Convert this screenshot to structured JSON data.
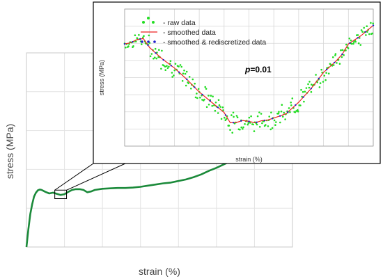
{
  "chart_data": [
    {
      "type": "line",
      "xlabel": "strain (%)",
      "ylabel": "stress (MPa)",
      "xlim": [
        0,
        70
      ],
      "ylim": [
        0,
        5
      ],
      "xticks": [
        "0",
        "10",
        "20",
        "30",
        "40",
        "50",
        "60",
        "70"
      ],
      "yticks": [
        "0",
        "1",
        "2",
        "3",
        "4",
        "5"
      ],
      "grid": true,
      "series": [
        {
          "color": "#1b8a3a",
          "x": [
            0,
            0.5,
            1,
            1.5,
            2,
            2.5,
            3,
            3.5,
            4,
            5,
            6,
            7,
            8,
            9,
            10,
            11,
            12,
            13,
            14,
            15,
            16,
            17,
            18,
            20,
            22,
            24,
            26,
            28,
            30,
            32,
            34,
            36,
            38,
            40,
            42,
            44,
            46,
            48,
            50,
            52,
            54,
            56,
            58
          ],
          "y": [
            0,
            0.45,
            0.85,
            1.1,
            1.3,
            1.4,
            1.46,
            1.48,
            1.47,
            1.42,
            1.38,
            1.4,
            1.37,
            1.34,
            1.36,
            1.42,
            1.47,
            1.49,
            1.49,
            1.47,
            1.41,
            1.43,
            1.47,
            1.5,
            1.51,
            1.52,
            1.52,
            1.53,
            1.55,
            1.58,
            1.61,
            1.64,
            1.66,
            1.7,
            1.74,
            1.8,
            1.87,
            1.96,
            2.04,
            2.13,
            2.22,
            2.3,
            2.38
          ]
        }
      ],
      "zoom_box": {
        "x": [
          8,
          10
        ],
        "y": [
          1.335,
          1.375
        ]
      }
    },
    {
      "type": "scatter",
      "xlabel": "strain (%)",
      "ylabel": "stress (MPa)",
      "xlim": [
        8,
        10
      ],
      "ylim": [
        1.335,
        1.375
      ],
      "xticks": [
        "8",
        "8.2",
        "8.4",
        "8.6",
        "8.8",
        "9",
        "9.2",
        "9.4",
        "9.6",
        "9.8",
        "10"
      ],
      "yticks": [
        "1.335",
        "1.34",
        "1.345",
        "1.35",
        "1.355",
        "1.36",
        "1.365",
        "1.37",
        "1.375"
      ],
      "grid": true,
      "legend_position": "top-left",
      "annotation": {
        "prefix": "p",
        "suffix": "=0.01"
      },
      "series": [
        {
          "name": "- raw data",
          "style": "scatter",
          "color": "#22dd22",
          "n_points": 260,
          "noise_amplitude": 0.0035
        },
        {
          "name": "- smoothed data",
          "style": "line",
          "color": "#ee2222",
          "x": [
            8.0,
            8.05,
            8.1,
            8.15,
            8.2,
            8.3,
            8.4,
            8.5,
            8.6,
            8.7,
            8.8,
            8.85,
            8.9,
            8.95,
            9.0,
            9.05,
            9.1,
            9.15,
            9.2,
            9.25,
            9.3,
            9.4,
            9.5,
            9.6,
            9.7,
            9.75,
            9.8,
            9.9,
            10.0
          ],
          "y": [
            1.3648,
            1.3652,
            1.3661,
            1.3664,
            1.3638,
            1.3605,
            1.3578,
            1.3545,
            1.3508,
            1.3478,
            1.3448,
            1.3418,
            1.3419,
            1.3425,
            1.3422,
            1.3418,
            1.3424,
            1.3426,
            1.3432,
            1.3438,
            1.3445,
            1.3478,
            1.3518,
            1.3565,
            1.3598,
            1.3618,
            1.3648,
            1.3672,
            1.3702
          ]
        },
        {
          "name": "- smoothed & rediscretized data",
          "style": "dots",
          "color": "#1f1fcc",
          "step": 0.0625
        }
      ]
    }
  ]
}
